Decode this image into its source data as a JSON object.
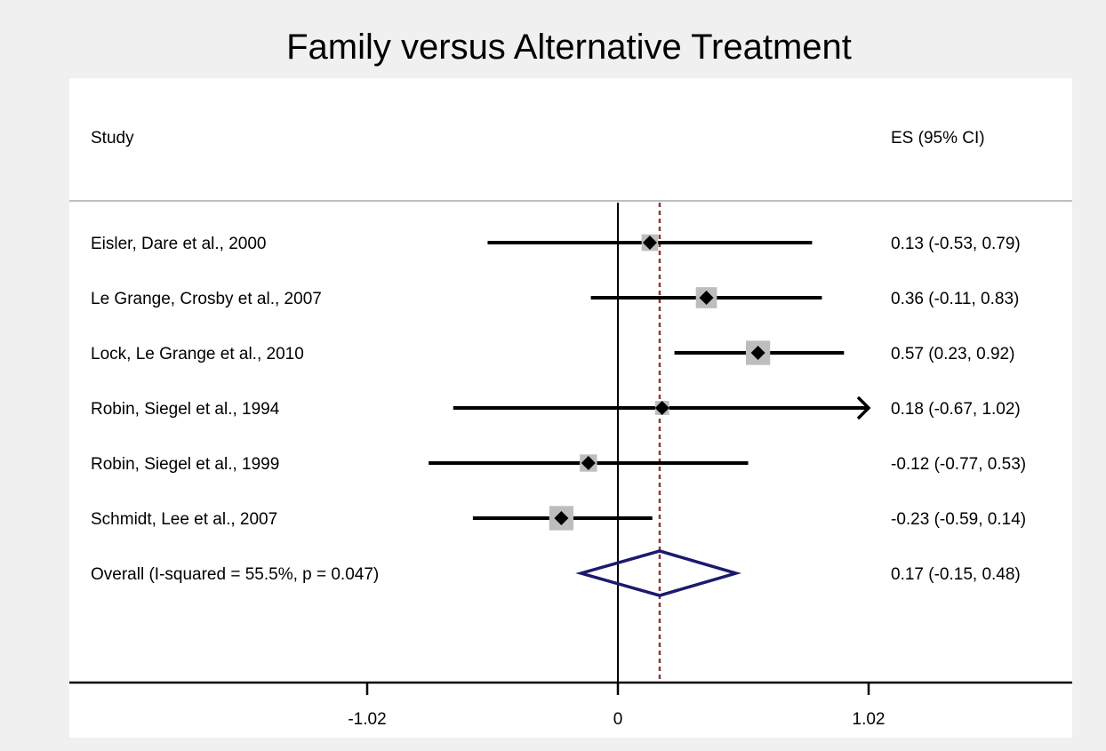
{
  "chart_data": {
    "type": "forest",
    "title": "Family versus Alternative Treatment",
    "header_study": "Study",
    "header_es": "ES (95% CI)",
    "xlim": [
      -1.02,
      1.02
    ],
    "xticks": [
      -1.02,
      0,
      1.02
    ],
    "xtick_labels": [
      "-1.02",
      "0",
      "1.02"
    ],
    "null_line": 0,
    "pooled_line": 0.17,
    "studies": [
      {
        "label": "Eisler, Dare et al., 2000",
        "es": 0.13,
        "lo": -0.53,
        "hi": 0.79,
        "ci_text": "0.13 (-0.53, 0.79)",
        "weight": 12
      },
      {
        "label": "Le Grange, Crosby et al., 2007",
        "es": 0.36,
        "lo": -0.11,
        "hi": 0.83,
        "ci_text": "0.36 (-0.11, 0.83)",
        "weight": 19
      },
      {
        "label": "Lock, Le Grange et al., 2010",
        "es": 0.57,
        "lo": 0.23,
        "hi": 0.92,
        "ci_text": "0.57 (0.23, 0.92)",
        "weight": 24
      },
      {
        "label": "Robin, Siegel et al., 1994",
        "es": 0.18,
        "lo": -0.67,
        "hi": 1.02,
        "ci_text": "0.18 (-0.67, 1.02)",
        "weight": 8,
        "arrow_hi": true
      },
      {
        "label": "Robin, Siegel et al., 1999",
        "es": -0.12,
        "lo": -0.77,
        "hi": 0.53,
        "ci_text": "-0.12 (-0.77, 0.53)",
        "weight": 13
      },
      {
        "label": "Schmidt, Lee et al., 2007",
        "es": -0.23,
        "lo": -0.59,
        "hi": 0.14,
        "ci_text": "-0.23 (-0.59, 0.14)",
        "weight": 24
      }
    ],
    "overall": {
      "label": "Overall  (I-squared = 55.5%, p = 0.047)",
      "es": 0.17,
      "lo": -0.15,
      "hi": 0.48,
      "ci_text": "0.17 (-0.15, 0.48)"
    },
    "colors": {
      "background": "#f0f0f0",
      "panel": "#ffffff",
      "box": "#bdbdbd",
      "diamond": "#1a1a6e",
      "pooled_line": "#8b3a3a",
      "ink": "#000000",
      "divider": "#bfbfbf"
    }
  }
}
